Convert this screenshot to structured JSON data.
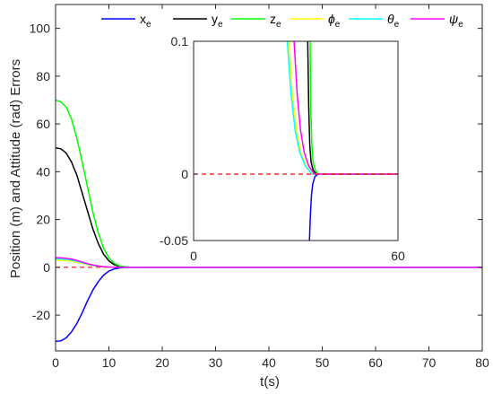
{
  "chart_data": {
    "type": "line",
    "xlabel": "t(s)",
    "ylabel": "Position (m) and Attitude (rad) Errors",
    "xlim": [
      0,
      80
    ],
    "ylim": [
      -35,
      110
    ],
    "xticks": [
      0,
      10,
      20,
      30,
      40,
      50,
      60,
      70,
      80
    ],
    "yticks": [
      -20,
      0,
      20,
      40,
      60,
      80,
      100
    ],
    "grid": false,
    "legend": "top, horizontal",
    "reference_line": {
      "y": 0,
      "color": "#ff0000",
      "style": "dashed"
    },
    "series": [
      {
        "name": "x",
        "sub": "e",
        "greek": false,
        "color": "#0000ff",
        "x": [
          0,
          1,
          2,
          3,
          4,
          5,
          6,
          7,
          8,
          9,
          10,
          11,
          12,
          13,
          14,
          15,
          80
        ],
        "values": [
          -31,
          -30.8,
          -29.5,
          -27,
          -23.5,
          -19,
          -14,
          -9.5,
          -6,
          -3.3,
          -1.6,
          -0.7,
          -0.25,
          -0.08,
          -0.02,
          0,
          0
        ]
      },
      {
        "name": "y",
        "sub": "e",
        "greek": false,
        "color": "#000000",
        "x": [
          0,
          1,
          2,
          3,
          4,
          5,
          6,
          7,
          8,
          9,
          10,
          11,
          12,
          13,
          14,
          15,
          80
        ],
        "values": [
          50,
          49.6,
          47.8,
          44,
          38.5,
          31,
          23.5,
          16,
          10,
          5.5,
          2.7,
          1.1,
          0.4,
          0.1,
          0.03,
          0,
          0
        ]
      },
      {
        "name": "z",
        "sub": "e",
        "greek": false,
        "color": "#00ff00",
        "x": [
          0,
          1,
          2,
          3,
          4,
          5,
          6,
          7,
          8,
          9,
          10,
          11,
          12,
          13,
          14,
          15,
          80
        ],
        "values": [
          70,
          69.3,
          67,
          62,
          54,
          44,
          33.5,
          23,
          14.5,
          8,
          4,
          1.7,
          0.6,
          0.2,
          0.05,
          0,
          0
        ]
      },
      {
        "name": "ϕ",
        "sub": "e",
        "greek": true,
        "color": "#ffff00",
        "x": [
          0,
          1,
          2,
          3,
          4,
          5,
          6,
          7,
          8,
          9,
          10,
          11,
          12,
          13,
          80
        ],
        "values": [
          3,
          2.95,
          2.8,
          2.5,
          2.1,
          1.6,
          1.1,
          0.7,
          0.4,
          0.2,
          0.08,
          0.03,
          0.01,
          0,
          0
        ]
      },
      {
        "name": "θ",
        "sub": "e",
        "greek": true,
        "color": "#00ffff",
        "x": [
          0,
          1,
          2,
          3,
          4,
          5,
          6,
          7,
          8,
          9,
          10,
          11,
          12,
          13,
          80
        ],
        "values": [
          3.5,
          3.45,
          3.3,
          3,
          2.5,
          1.9,
          1.3,
          0.8,
          0.45,
          0.22,
          0.09,
          0.03,
          0.01,
          0,
          0
        ]
      },
      {
        "name": "ψ",
        "sub": "e",
        "greek": true,
        "color": "#ff00ff",
        "x": [
          0,
          1,
          2,
          3,
          4,
          5,
          6,
          7,
          8,
          9,
          10,
          11,
          12,
          13,
          80
        ],
        "values": [
          4,
          3.95,
          3.75,
          3.4,
          2.9,
          2.2,
          1.5,
          0.95,
          0.55,
          0.27,
          0.11,
          0.04,
          0.01,
          0,
          0
        ]
      }
    ],
    "inset": {
      "xlim": [
        0,
        60
      ],
      "ylim": [
        -0.05,
        0.1
      ],
      "xticks": [
        0,
        60
      ],
      "yticks": [
        -0.05,
        0,
        0.1
      ],
      "ytick_labels": [
        "-0.05",
        "0",
        "0.1"
      ],
      "reference_line": {
        "y": 0,
        "color": "#ff0000",
        "style": "dashed"
      },
      "series": [
        {
          "color": "#0000ff",
          "x": [
            34.0,
            34.3,
            34.6,
            35.0,
            35.6,
            36.5,
            60
          ],
          "values": [
            -0.05,
            -0.03,
            -0.016,
            -0.007,
            -0.002,
            0,
            0
          ]
        },
        {
          "color": "#000000",
          "x": [
            33.5,
            33.8,
            34.1,
            34.5,
            35.1,
            36.0,
            60
          ],
          "values": [
            0.1,
            0.05,
            0.022,
            0.009,
            0.003,
            0,
            0
          ]
        },
        {
          "color": "#00ff00",
          "x": [
            34.2,
            34.4,
            34.7,
            35.1,
            35.7,
            36.6,
            60
          ],
          "values": [
            0.1,
            0.05,
            0.022,
            0.009,
            0.003,
            0,
            0
          ]
        },
        {
          "color": "#ffff00",
          "x": [
            28.0,
            29.0,
            30.2,
            31.5,
            33.0,
            35.0,
            60
          ],
          "values": [
            0.1,
            0.06,
            0.033,
            0.016,
            0.006,
            0,
            0
          ]
        },
        {
          "color": "#00ffff",
          "x": [
            27.5,
            28.6,
            29.8,
            31.2,
            32.8,
            34.8,
            60
          ],
          "values": [
            0.1,
            0.06,
            0.033,
            0.016,
            0.006,
            0,
            0
          ]
        },
        {
          "color": "#ff00ff",
          "x": [
            29.5,
            30.4,
            31.4,
            32.5,
            33.8,
            35.5,
            60
          ],
          "values": [
            0.1,
            0.06,
            0.033,
            0.016,
            0.006,
            0,
            0
          ]
        }
      ]
    }
  }
}
